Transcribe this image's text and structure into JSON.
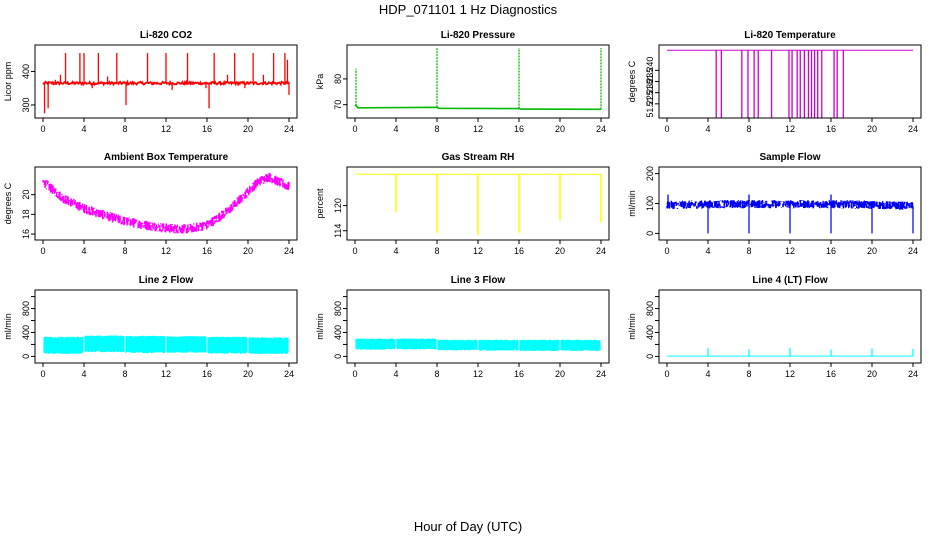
{
  "figure": {
    "title": "HDP_071101  1 Hz Diagnostics",
    "xlabel": "Hour of Day (UTC)"
  },
  "chart_data": [
    {
      "type": "line",
      "title": "Li-820 CO2",
      "ylabel": "Licor ppm",
      "color": "#ff0000",
      "xlim": [
        0,
        24
      ],
      "ylim": [
        270,
        470
      ],
      "xticks": [
        0,
        4,
        8,
        12,
        16,
        20,
        24
      ],
      "yticks": [
        300,
        400
      ],
      "series": [
        {
          "name": "CO2",
          "baseline": 365,
          "noise": 4,
          "spikes": [
            {
              "x": 0.15,
              "y": 275
            },
            {
              "x": 0.5,
              "y": 290
            },
            {
              "x": 1.2,
              "y": 375
            },
            {
              "x": 1.7,
              "y": 390
            },
            {
              "x": 2.2,
              "y": 455
            },
            {
              "x": 3.6,
              "y": 455
            },
            {
              "x": 4.0,
              "y": 455
            },
            {
              "x": 4.8,
              "y": 350
            },
            {
              "x": 5.4,
              "y": 455
            },
            {
              "x": 6.3,
              "y": 385
            },
            {
              "x": 7.2,
              "y": 455
            },
            {
              "x": 7.8,
              "y": 370
            },
            {
              "x": 8.1,
              "y": 300
            },
            {
              "x": 10.2,
              "y": 455
            },
            {
              "x": 12.0,
              "y": 455
            },
            {
              "x": 12.6,
              "y": 345
            },
            {
              "x": 14.1,
              "y": 455
            },
            {
              "x": 15.9,
              "y": 350
            },
            {
              "x": 16.2,
              "y": 290
            },
            {
              "x": 16.7,
              "y": 455
            },
            {
              "x": 18.0,
              "y": 390
            },
            {
              "x": 18.7,
              "y": 455
            },
            {
              "x": 19.7,
              "y": 350
            },
            {
              "x": 20.5,
              "y": 455
            },
            {
              "x": 21.5,
              "y": 390
            },
            {
              "x": 22.5,
              "y": 455
            },
            {
              "x": 23.6,
              "y": 455
            },
            {
              "x": 23.85,
              "y": 435
            },
            {
              "x": 24.0,
              "y": 330
            }
          ]
        }
      ]
    },
    {
      "type": "line",
      "title": "Li-820 Pressure",
      "ylabel": "kPa",
      "color": "#00bb00",
      "xlim": [
        0,
        24
      ],
      "ylim": [
        66,
        92
      ],
      "xticks": [
        0,
        4,
        8,
        12,
        16,
        20,
        24
      ],
      "yticks": [
        70,
        80
      ],
      "series": [
        {
          "name": "Pressure",
          "points": [
            [
              0,
              70
            ],
            [
              0.3,
              68.8
            ],
            [
              8,
              69
            ],
            [
              8.2,
              68.6
            ],
            [
              16,
              68.5
            ],
            [
              16.2,
              68.3
            ],
            [
              24,
              68.2
            ]
          ],
          "spikes": [
            {
              "x": 0.1,
              "y": 84
            },
            {
              "x": 8.0,
              "y": 92
            },
            {
              "x": 16.0,
              "y": 92
            },
            {
              "x": 24.0,
              "y": 92
            }
          ]
        }
      ]
    },
    {
      "type": "line",
      "title": "Li-820 Temperature",
      "ylabel": "degrees C",
      "color": "#cc00cc",
      "xlim": [
        0,
        24
      ],
      "ylim": [
        51.22,
        51.25
      ],
      "xticks": [
        0,
        4,
        8,
        12,
        16,
        20,
        24
      ],
      "yticks": [
        51.225,
        51.23,
        51.235,
        51.24
      ],
      "ytick_labels": [
        "51.225",
        "51.230",
        "51.235",
        "51.240"
      ],
      "series": [
        {
          "name": "Temperature",
          "baseline": 51.249,
          "drops": [
            4.8,
            5.3,
            7.3,
            7.9,
            8.5,
            8.9,
            10.2,
            11.9,
            12.2,
            12.7,
            13.0,
            13.4,
            13.8,
            14.1,
            14.4,
            14.7,
            15.1,
            16.3,
            16.6,
            17.2
          ]
        }
      ]
    },
    {
      "type": "area",
      "title": "Ambient Box Temperature",
      "ylabel": "degrees C",
      "color": "#ff00ff",
      "xlim": [
        0,
        24
      ],
      "ylim": [
        15.7,
        22.5
      ],
      "xticks": [
        0,
        4,
        8,
        12,
        16,
        20,
        24
      ],
      "yticks": [
        16,
        18,
        20
      ],
      "series": [
        {
          "name": "Box temp",
          "center": [
            [
              0,
              21.3
            ],
            [
              2,
              19.6
            ],
            [
              4,
              18.6
            ],
            [
              6,
              17.9
            ],
            [
              8,
              17.3
            ],
            [
              10,
              16.9
            ],
            [
              12,
              16.6
            ],
            [
              14,
              16.5
            ],
            [
              16,
              16.9
            ],
            [
              18,
              18.3
            ],
            [
              20,
              20.3
            ],
            [
              21,
              21.3
            ],
            [
              22,
              21.8
            ],
            [
              23,
              21.3
            ],
            [
              24,
              20.8
            ]
          ],
          "band": 0.5
        }
      ]
    },
    {
      "type": "line",
      "title": "Gas Stream RH",
      "ylabel": "percent",
      "color": "#ffff00",
      "xlim": [
        0,
        24
      ],
      "ylim": [
        112.5,
        128.5
      ],
      "xticks": [
        0,
        4,
        8,
        12,
        16,
        20,
        24
      ],
      "yticks": [
        114,
        120
      ],
      "series": [
        {
          "name": "RH",
          "baseline": 127.5,
          "dips": [
            {
              "x": 4.0,
              "y": 118.5
            },
            {
              "x": 8.0,
              "y": 113.5
            },
            {
              "x": 12.0,
              "y": 113.0
            },
            {
              "x": 16.0,
              "y": 113.5
            },
            {
              "x": 20.0,
              "y": 116.5
            },
            {
              "x": 24.0,
              "y": 116.0
            }
          ]
        }
      ]
    },
    {
      "type": "area",
      "title": "Sample Flow",
      "ylabel": "ml/min",
      "color": "#0000ee",
      "xlim": [
        0,
        24
      ],
      "ylim": [
        -12,
        212
      ],
      "xticks": [
        0,
        4,
        8,
        12,
        16,
        20,
        24
      ],
      "yticks": [
        0,
        100,
        200
      ],
      "series": [
        {
          "name": "Sample flow",
          "center": [
            [
              0,
              95
            ],
            [
              6,
              98
            ],
            [
              12,
              98
            ],
            [
              18,
              97
            ],
            [
              24,
              92
            ]
          ],
          "band": 14,
          "dips": [
            4.0,
            8.0,
            12.0,
            16.0,
            20.0,
            24.0
          ],
          "spikes": [
            {
              "x": 0.1,
              "y": 130
            },
            {
              "x": 8.0,
              "y": 130
            },
            {
              "x": 16.0,
              "y": 130
            }
          ]
        }
      ]
    },
    {
      "type": "area",
      "title": "Line 2 Flow",
      "ylabel": "ml/min",
      "color": "#00ffff",
      "xlim": [
        0,
        24
      ],
      "ylim": [
        -60,
        1060
      ],
      "xticks": [
        0,
        4,
        8,
        12,
        16,
        20,
        24
      ],
      "yticks": [
        0,
        200,
        400,
        600,
        800,
        1000
      ],
      "ytick_labels": [
        "0",
        "",
        "400",
        "",
        "800",
        ""
      ],
      "series": [
        {
          "name": "Line 2",
          "segments": [
            [
              0,
              4,
              40,
              330
            ],
            [
              4,
              8,
              70,
              350
            ],
            [
              8,
              12,
              55,
              345
            ],
            [
              12,
              16,
              60,
              340
            ],
            [
              16,
              20,
              45,
              330
            ],
            [
              20,
              24,
              40,
              320
            ]
          ]
        }
      ]
    },
    {
      "type": "area",
      "title": "Line 3 Flow",
      "ylabel": "ml/min",
      "color": "#00ffff",
      "xlim": [
        0,
        24
      ],
      "ylim": [
        -60,
        1060
      ],
      "xticks": [
        0,
        4,
        8,
        12,
        16,
        20,
        24
      ],
      "yticks": [
        0,
        200,
        400,
        600,
        800,
        1000
      ],
      "ytick_labels": [
        "0",
        "",
        "400",
        "",
        "800",
        ""
      ],
      "series": [
        {
          "name": "Line 3",
          "segments": [
            [
              0,
              4,
              110,
              300
            ],
            [
              4,
              8,
              115,
              300
            ],
            [
              8,
              12,
              100,
              280
            ],
            [
              12,
              16,
              95,
              280
            ],
            [
              16,
              20,
              90,
              280
            ],
            [
              20,
              24,
              90,
              280
            ]
          ]
        }
      ]
    },
    {
      "type": "line",
      "title": "Line 4 (LT) Flow",
      "ylabel": "ml/min",
      "color": "#00ffff",
      "xlim": [
        0,
        24
      ],
      "ylim": [
        -60,
        1060
      ],
      "xticks": [
        0,
        4,
        8,
        12,
        16,
        20,
        24
      ],
      "yticks": [
        0,
        200,
        400,
        600,
        800,
        1000
      ],
      "ytick_labels": [
        "0",
        "",
        "400",
        "",
        "800",
        ""
      ],
      "series": [
        {
          "name": "Line 4",
          "baseline": 5,
          "spikes": [
            {
              "x": 4,
              "y": 140
            },
            {
              "x": 8,
              "y": 120
            },
            {
              "x": 12,
              "y": 145
            },
            {
              "x": 16,
              "y": 115
            },
            {
              "x": 20,
              "y": 135
            },
            {
              "x": 24,
              "y": 125
            }
          ]
        }
      ]
    }
  ]
}
